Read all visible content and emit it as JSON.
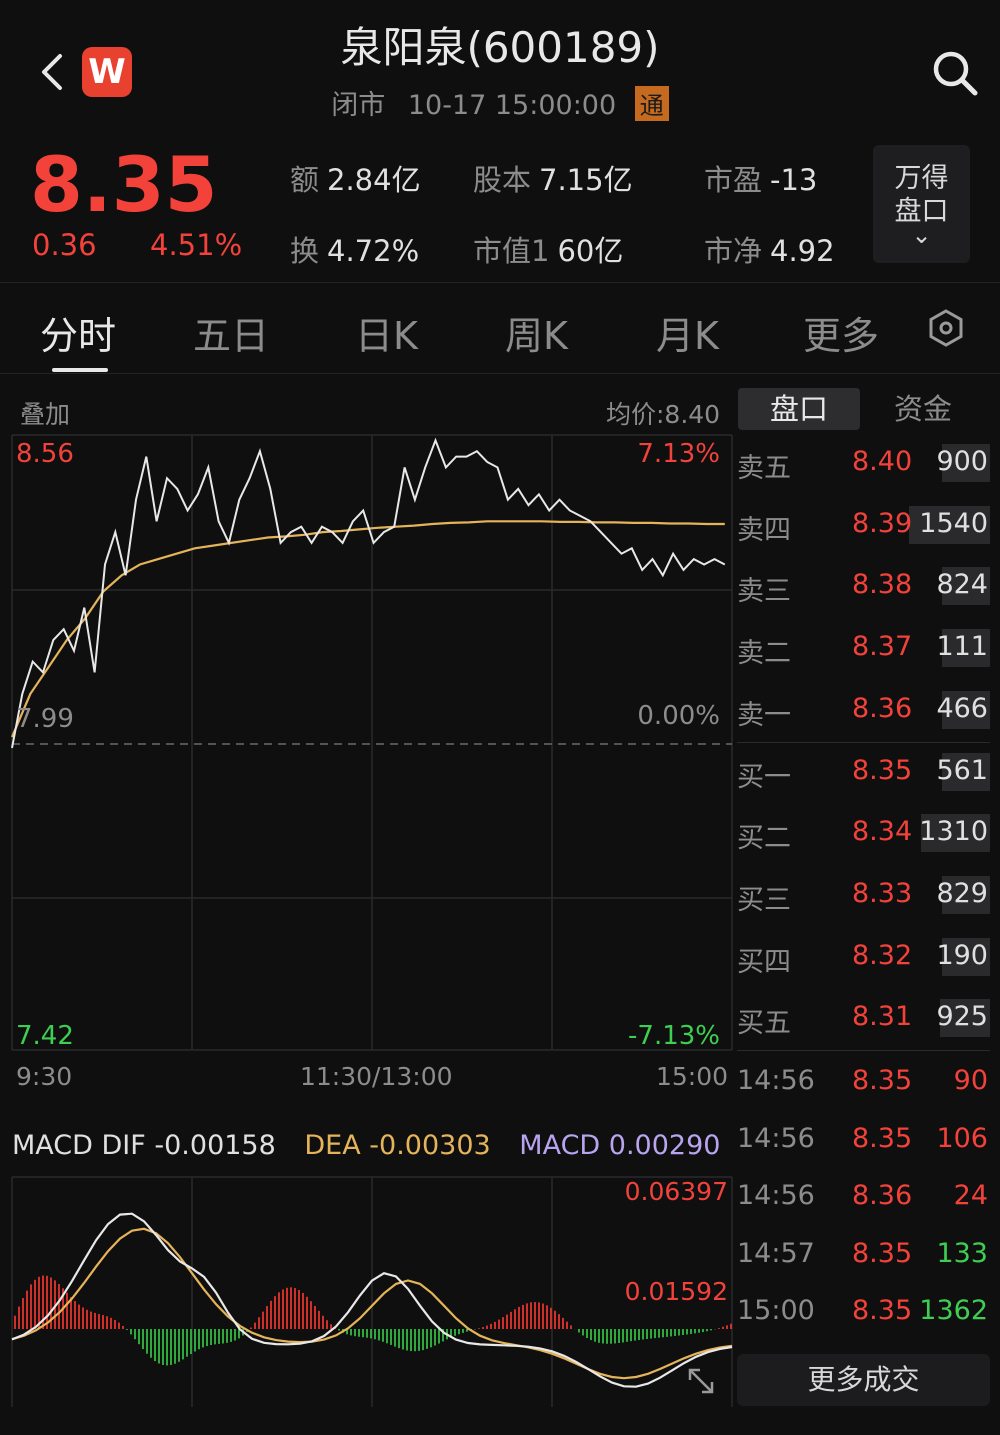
{
  "header": {
    "title": "泉阳泉(600189)",
    "status": "闭市",
    "datetime": "10-17 15:00:00",
    "tong_badge": "通"
  },
  "quote": {
    "price": "8.35",
    "change": "0.36",
    "change_pct": "4.51%",
    "stats": [
      {
        "label": "额",
        "value": "2.84亿"
      },
      {
        "label": "股本",
        "value": "7.15亿"
      },
      {
        "label": "市盈",
        "value": "-13"
      },
      {
        "label": "换",
        "value": "4.72%"
      },
      {
        "label": "市值1",
        "value": "60亿"
      },
      {
        "label": "市净",
        "value": "4.92"
      }
    ],
    "wind_button": {
      "line1": "万得",
      "line2": "盘口",
      "chevron": "⌄"
    }
  },
  "tabs": [
    "分时",
    "五日",
    "日K",
    "周K",
    "月K",
    "更多"
  ],
  "chart": {
    "overlay_label": "叠加",
    "avg_price_label": "均价:8.40",
    "y_high": "8.56",
    "y_mid": "7.99",
    "y_low": "7.42",
    "pct_high": "7.13%",
    "pct_mid": "0.00%",
    "pct_low": "-7.13%",
    "x_start": "9:30",
    "x_mid": "11:30/13:00",
    "x_end": "15:00",
    "price_color": "#e8e8e8",
    "avg_color": "#e5b45a"
  },
  "macd": {
    "dif": "MACD DIF -0.00158",
    "dea": "DEA -0.00303",
    "macd": "MACD 0.00290",
    "top_value": "0.06397",
    "mid_value": "0.01592",
    "dif_color": "#e8e8e8",
    "dea_color": "#e5b45a",
    "macd_color": "#b9a4f0"
  },
  "side_tabs": {
    "active": "盘口",
    "other": "资金"
  },
  "order_book": [
    {
      "label": "卖五",
      "price": "8.40",
      "volume": "900",
      "fill": 0.23
    },
    {
      "label": "卖四",
      "price": "8.39",
      "volume": "1540",
      "fill": 0.39
    },
    {
      "label": "卖三",
      "price": "8.38",
      "volume": "824",
      "fill": 0.21
    },
    {
      "label": "卖二",
      "price": "8.37",
      "volume": "111",
      "fill": 0.03
    },
    {
      "label": "卖一",
      "price": "8.36",
      "volume": "466",
      "fill": 0.12
    },
    {
      "label": "买一",
      "price": "8.35",
      "volume": "561",
      "fill": 0.14
    },
    {
      "label": "买二",
      "price": "8.34",
      "volume": "1310",
      "fill": 0.33
    },
    {
      "label": "买三",
      "price": "8.33",
      "volume": "829",
      "fill": 0.21
    },
    {
      "label": "买四",
      "price": "8.32",
      "volume": "190",
      "fill": 0.05
    },
    {
      "label": "买五",
      "price": "8.31",
      "volume": "925",
      "fill": 0.24
    }
  ],
  "trades": [
    {
      "time": "14:56",
      "price": "8.35",
      "volume": "90",
      "price_color": "#f2423a",
      "volume_color": "#f2423a"
    },
    {
      "time": "14:56",
      "price": "8.35",
      "volume": "106",
      "price_color": "#f2423a",
      "volume_color": "#f2423a"
    },
    {
      "time": "14:56",
      "price": "8.36",
      "volume": "24",
      "price_color": "#f2423a",
      "volume_color": "#f2423a"
    },
    {
      "time": "14:57",
      "price": "8.35",
      "volume": "133",
      "price_color": "#f2423a",
      "volume_color": "#3ecf52"
    },
    {
      "time": "15:00",
      "price": "8.35",
      "volume": "1362",
      "price_color": "#f2423a",
      "volume_color": "#3ecf52"
    }
  ],
  "more_trades_label": "更多成交",
  "chart_data": {
    "type": "line",
    "x_ticks": [
      "9:30",
      "11:30/13:00",
      "15:00"
    ],
    "ylim": [
      7.42,
      8.56
    ],
    "series": [
      {
        "name": "",
        "values": [
          7.98,
          8.08,
          8.14,
          8.12,
          8.18,
          8.2,
          8.16,
          8.24,
          8.12,
          8.32,
          8.38,
          8.3,
          8.44,
          8.52,
          8.4,
          8.48,
          8.46,
          8.42,
          8.45,
          8.5,
          8.4,
          8.36,
          8.44,
          8.48,
          8.53,
          8.46,
          8.36,
          8.38,
          8.39,
          8.36,
          8.39,
          8.38,
          8.36,
          8.4,
          8.42,
          8.36,
          8.38,
          8.39,
          8.5,
          8.44,
          8.5,
          8.55,
          8.5,
          8.52,
          8.52,
          8.53,
          8.51,
          8.5,
          8.44,
          8.46,
          8.43,
          8.45,
          8.42,
          8.44,
          8.42,
          8.41,
          8.4,
          8.38,
          8.36,
          8.34,
          8.35,
          8.31,
          8.33,
          8.3,
          8.34,
          8.31,
          8.33,
          8.32,
          8.33,
          8.32
        ]
      },
      {
        "name": "均价",
        "values": [
          8.0,
          8.08,
          8.13,
          8.18,
          8.22,
          8.27,
          8.3,
          8.32,
          8.33,
          8.34,
          8.35,
          8.355,
          8.36,
          8.365,
          8.37,
          8.372,
          8.375,
          8.38,
          8.382,
          8.385,
          8.388,
          8.39,
          8.392,
          8.395,
          8.397,
          8.398,
          8.4,
          8.4,
          8.4,
          8.4,
          8.399,
          8.399,
          8.398,
          8.398,
          8.397,
          8.397,
          8.396,
          8.396,
          8.395,
          8.395
        ]
      }
    ]
  }
}
